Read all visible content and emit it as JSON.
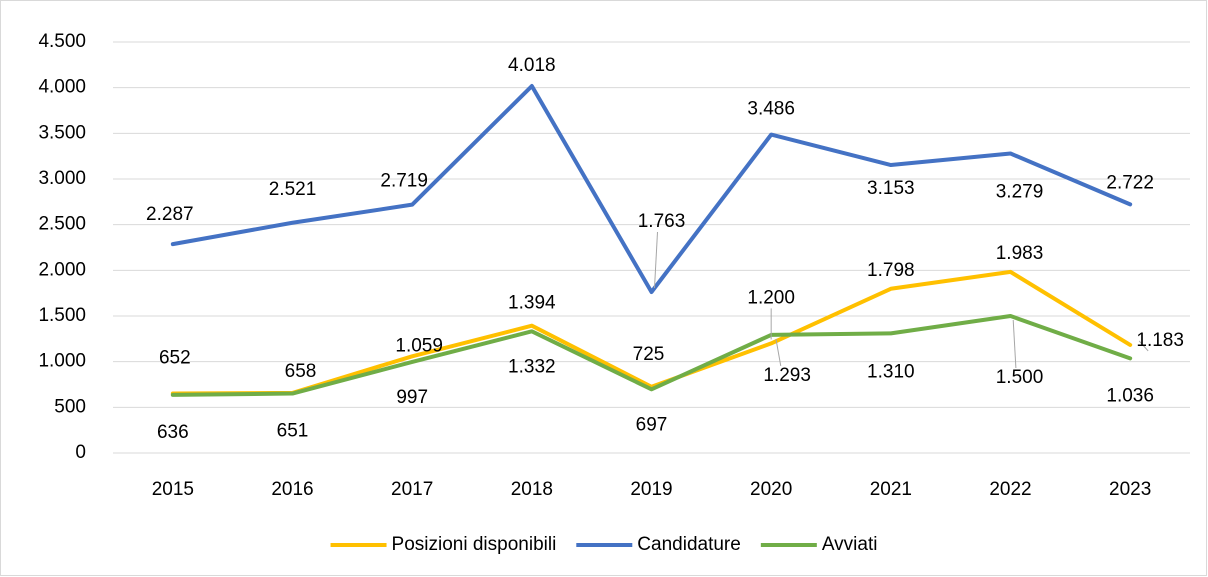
{
  "chart_data": {
    "type": "line",
    "categories": [
      "2015",
      "2016",
      "2017",
      "2018",
      "2019",
      "2020",
      "2021",
      "2022",
      "2023"
    ],
    "series": [
      {
        "name": "Posizioni disponibili",
        "color": "#FFC000",
        "values": [
          652,
          658,
          1059,
          1394,
          725,
          1200,
          1798,
          1983,
          1183
        ],
        "value_labels": [
          "652",
          "658",
          "1.059",
          "1.394",
          "725",
          "1.200",
          "1.798",
          "1.983",
          "1.183"
        ]
      },
      {
        "name": "Candidature",
        "color": "#4472C4",
        "values": [
          2287,
          2521,
          2719,
          4018,
          1763,
          3486,
          3153,
          3279,
          2722
        ],
        "value_labels": [
          "2.287",
          "2.521",
          "2.719",
          "4.018",
          "1.763",
          "3.486",
          "3.153",
          "3.279",
          "2.722"
        ]
      },
      {
        "name": "Avviati",
        "color": "#70AD47",
        "values": [
          636,
          651,
          997,
          1332,
          697,
          1293,
          1310,
          1500,
          1036
        ],
        "value_labels": [
          "636",
          "651",
          "997",
          "1.332",
          "697",
          "1.293",
          "1.310",
          "1.500",
          "1.036"
        ]
      }
    ],
    "ylim": [
      0,
      4500
    ],
    "yticks": [
      0,
      500,
      {
        "value": 1000,
        "label": "1.000"
      },
      {
        "value": 1500,
        "label": "1.500"
      },
      {
        "value": 2000,
        "label": "2.000"
      },
      {
        "value": 2500,
        "label": "2.500"
      },
      {
        "value": 3000,
        "label": "3.000"
      },
      {
        "value": 3500,
        "label": "3.500"
      },
      {
        "value": 4000,
        "label": "4.000"
      },
      {
        "value": 4500,
        "label": "4.500"
      }
    ],
    "grid": true,
    "legend": "bottom"
  }
}
